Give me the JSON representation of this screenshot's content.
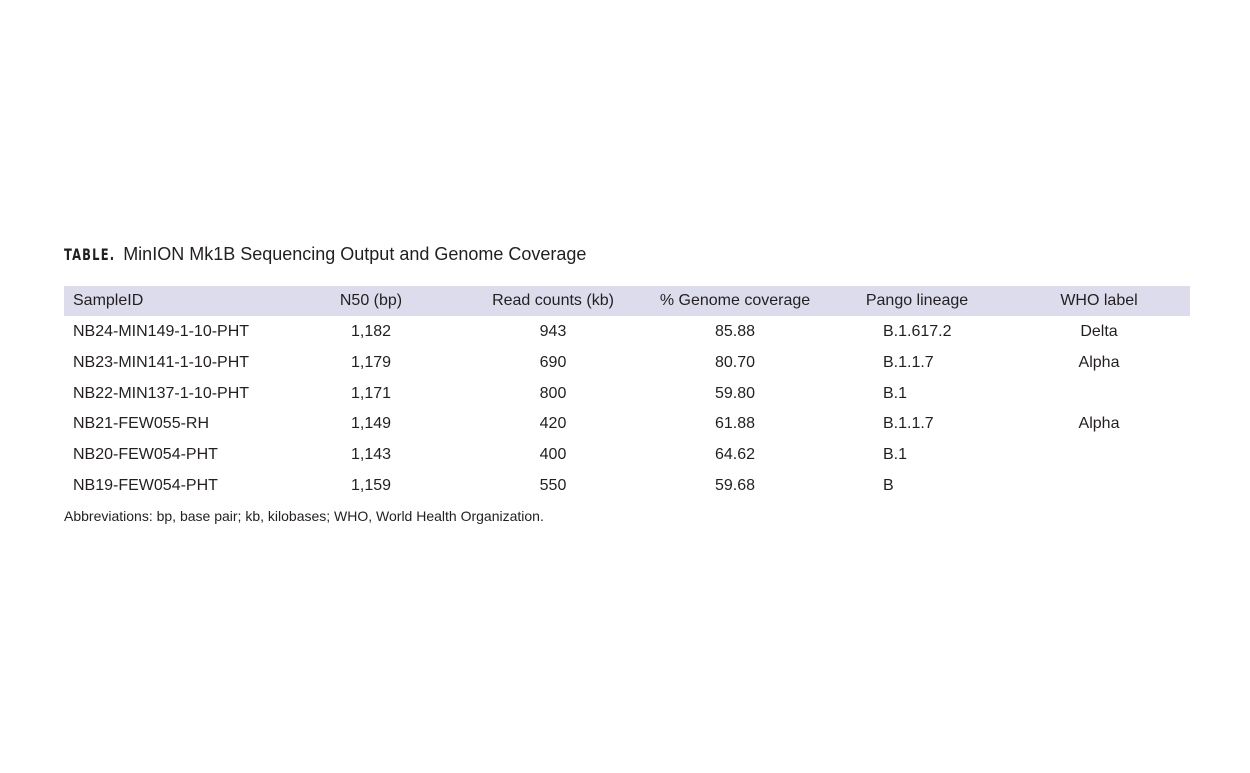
{
  "table": {
    "label": "TABLE.",
    "title": "MinION Mk1B Sequencing Output and Genome Coverage",
    "header_color": "#dcdcec",
    "columns": [
      "SampleID",
      "N50 (bp)",
      "Read counts (kb)",
      "% Genome coverage",
      "Pango lineage",
      "WHO label"
    ],
    "rows": [
      [
        "NB24-MIN149-1-10-PHT",
        "1,182",
        "943",
        "85.88",
        "B.1.617.2",
        "Delta"
      ],
      [
        "NB23-MIN141-1-10-PHT",
        "1,179",
        "690",
        "80.70",
        "B.1.1.7",
        "Alpha"
      ],
      [
        "NB22-MIN137-1-10-PHT",
        "1,171",
        "800",
        "59.80",
        "B.1",
        ""
      ],
      [
        "NB21-FEW055-RH",
        "1,149",
        "420",
        "61.88",
        "B.1.1.7",
        "Alpha"
      ],
      [
        "NB20-FEW054-PHT",
        "1,143",
        "400",
        "64.62",
        "B.1",
        ""
      ],
      [
        "NB19-FEW054-PHT",
        "1,159",
        "550",
        "59.68",
        "B",
        ""
      ]
    ],
    "footnote": "Abbreviations: bp, base pair; kb, kilobases; WHO, World Health Organization."
  }
}
